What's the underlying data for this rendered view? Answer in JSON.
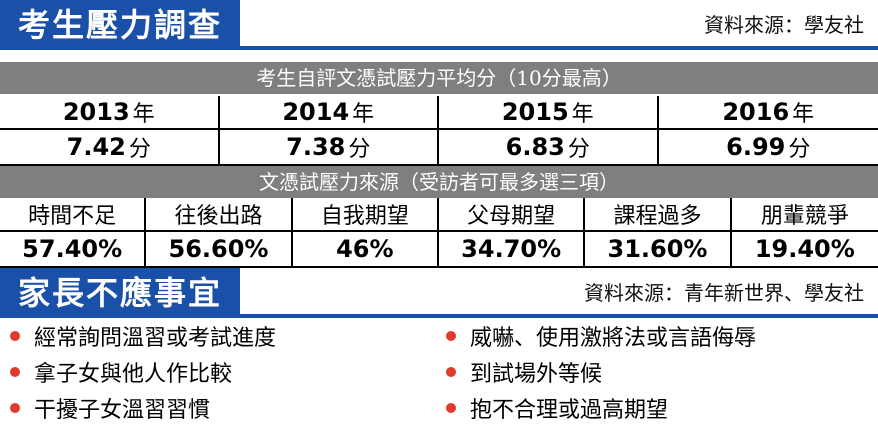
{
  "section1": {
    "title": "考生壓力調查",
    "source": "資料來源：學友社"
  },
  "table1": {
    "caption": "考生自評文憑試壓力平均分（10分最高）",
    "years": [
      {
        "year": "2013",
        "suffix": "年",
        "score": "7.42",
        "unit": "分"
      },
      {
        "year": "2014",
        "suffix": "年",
        "score": "7.38",
        "unit": "分"
      },
      {
        "year": "2015",
        "suffix": "年",
        "score": "6.83",
        "unit": "分"
      },
      {
        "year": "2016",
        "suffix": "年",
        "score": "6.99",
        "unit": "分"
      }
    ]
  },
  "table2": {
    "caption": "文憑試壓力來源（受訪者可最多選三項）",
    "sources": [
      {
        "label": "時間不足",
        "pct": "57.40%"
      },
      {
        "label": "往後出路",
        "pct": "56.60%"
      },
      {
        "label": "自我期望",
        "pct": "46%"
      },
      {
        "label": "父母期望",
        "pct": "34.70%"
      },
      {
        "label": "課程過多",
        "pct": "31.60%"
      },
      {
        "label": "朋輩競爭",
        "pct": "19.40%"
      }
    ]
  },
  "section2": {
    "title": "家長不應事宜",
    "source": "資料來源：青年新世界、學友社",
    "left_items": [
      "經常詢問溫習或考試進度",
      "拿子女與他人作比較",
      "干擾子女溫習習慣"
    ],
    "right_items": [
      "威嚇、使用激將法或言語侮辱",
      "到試場外等候",
      "抱不合理或過高期望"
    ]
  },
  "colors": {
    "banner": "#1a50a8",
    "caption_bar": "#7f7f7f",
    "bullet": "#e03a2a"
  }
}
